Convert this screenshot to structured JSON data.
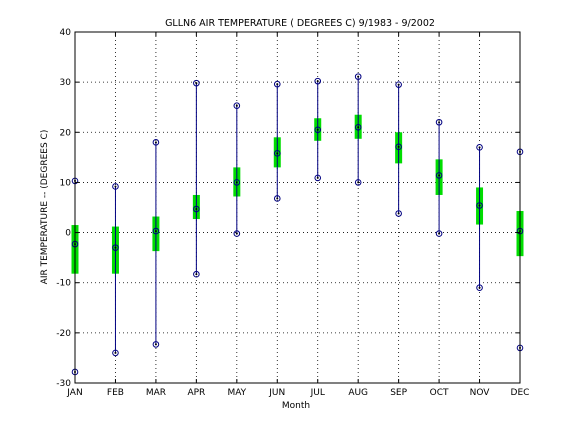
{
  "chart_data": {
    "type": "box",
    "title": "GLLN6  AIR TEMPERATURE ( DEGREES C) 9/1983 - 9/2002",
    "xlabel": "Month",
    "ylabel": "AIR TEMPERATURE -- (DEGREES C)",
    "categories": [
      "JAN",
      "FEB",
      "MAR",
      "APR",
      "MAY",
      "JUN",
      "JUL",
      "AUG",
      "SEP",
      "OCT",
      "NOV",
      "DEC"
    ],
    "ylim": [
      -30,
      40
    ],
    "yticks": [
      "-30",
      "-20",
      "-10",
      "0",
      "10",
      "20",
      "30",
      "40"
    ],
    "grid": true,
    "series": [
      {
        "name": "max",
        "values": [
          10.3,
          9.2,
          18.0,
          29.8,
          25.3,
          29.6,
          30.2,
          31.1,
          29.5,
          22.0,
          17.0,
          16.1
        ]
      },
      {
        "name": "q3",
        "values": [
          1.5,
          1.2,
          3.2,
          7.5,
          13.0,
          19.0,
          22.8,
          23.5,
          20.0,
          14.6,
          9.0,
          4.3
        ]
      },
      {
        "name": "mean",
        "values": [
          -2.3,
          -3.0,
          0.3,
          4.7,
          10.0,
          15.8,
          20.5,
          21.0,
          17.1,
          11.4,
          5.4,
          0.3
        ]
      },
      {
        "name": "q1",
        "values": [
          -8.2,
          -8.2,
          -3.7,
          2.7,
          7.2,
          13.0,
          18.3,
          18.7,
          13.8,
          7.5,
          1.6,
          -4.7
        ]
      },
      {
        "name": "min",
        "values": [
          -27.8,
          -24.0,
          -22.3,
          -8.3,
          -0.2,
          6.8,
          10.9,
          10.0,
          3.8,
          -0.2,
          -11.0,
          -23.0
        ]
      }
    ],
    "colors": {
      "whisker": "#000080",
      "box": "#00dd00",
      "marker": "#000000",
      "grid": "#000000"
    }
  }
}
